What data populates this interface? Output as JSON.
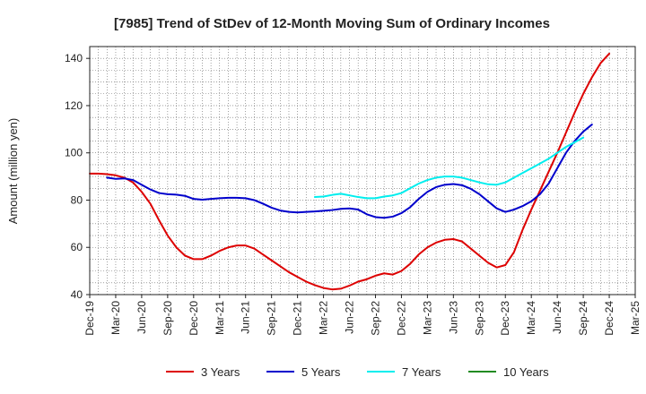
{
  "chart_data": {
    "type": "line",
    "title": "[7985]  Trend of StDev of 12-Month Moving Sum of Ordinary Incomes",
    "xlabel": "",
    "ylabel": "Amount (million yen)",
    "ylim": [
      40,
      145
    ],
    "yticks": [
      40,
      60,
      80,
      100,
      120,
      140
    ],
    "x_tick_labels": [
      "Dec-19",
      "Mar-20",
      "Jun-20",
      "Sep-20",
      "Dec-20",
      "Mar-21",
      "Jun-21",
      "Sep-21",
      "Dec-21",
      "Mar-22",
      "Jun-22",
      "Sep-22",
      "Dec-22",
      "Mar-23",
      "Jun-23",
      "Sep-23",
      "Dec-23",
      "Mar-24",
      "Jun-24",
      "Sep-24",
      "Dec-24",
      "Mar-25"
    ],
    "grid": true,
    "legend_position": "bottom",
    "series": [
      {
        "name": "3 Years",
        "color": "#dd0000",
        "start_index": 0,
        "values": [
          91.2,
          91.2,
          91.0,
          90.5,
          89.5,
          87.5,
          83.5,
          78.5,
          71.5,
          65,
          60,
          56.5,
          55,
          55,
          56.5,
          58.5,
          60,
          60.8,
          60.8,
          59.5,
          57,
          54.5,
          52,
          49.5,
          47.5,
          45.5,
          44,
          42.8,
          42.2,
          42.5,
          43.8,
          45.5,
          46.5,
          48,
          49,
          48.5,
          50,
          53,
          57,
          60,
          62,
          63.2,
          63.5,
          62.5,
          59.5,
          56.5,
          53.5,
          51.5,
          52.5,
          58,
          67.5,
          76,
          84,
          92,
          100,
          108.5,
          117,
          125,
          132,
          138,
          142
        ]
      },
      {
        "name": "5 Years",
        "color": "#0000cc",
        "start_index": 2,
        "values": [
          89.5,
          89.0,
          89.2,
          88.5,
          86.5,
          84.5,
          83,
          82.5,
          82.3,
          81.8,
          80.5,
          80.2,
          80.5,
          80.8,
          81,
          81,
          80.8,
          80,
          78.5,
          76.8,
          75.6,
          75,
          74.8,
          75,
          75.2,
          75.5,
          75.8,
          76.3,
          76.5,
          76,
          74,
          72.8,
          72.5,
          73,
          74.5,
          77,
          80.5,
          83.5,
          85.5,
          86.5,
          86.8,
          86.3,
          84.8,
          82.5,
          79.5,
          76.5,
          75,
          76,
          77.5,
          79.5,
          82.5,
          87,
          93.5,
          100,
          105,
          109,
          112
        ]
      },
      {
        "name": "7 Years",
        "color": "#00eeee",
        "start_index": 26,
        "values": [
          81.3,
          81.5,
          82.2,
          82.7,
          82,
          81.3,
          80.8,
          80.8,
          81.5,
          82,
          83,
          85,
          87,
          88.5,
          89.5,
          90,
          90,
          89.5,
          88.5,
          87.5,
          86.7,
          86.5,
          87.5,
          89.5,
          91.5,
          93.5,
          95.5,
          97.5,
          100,
          102.5,
          104.5,
          106.5
        ]
      },
      {
        "name": "10 Years",
        "color": "#228b22",
        "start_index": 0,
        "values": []
      }
    ]
  }
}
